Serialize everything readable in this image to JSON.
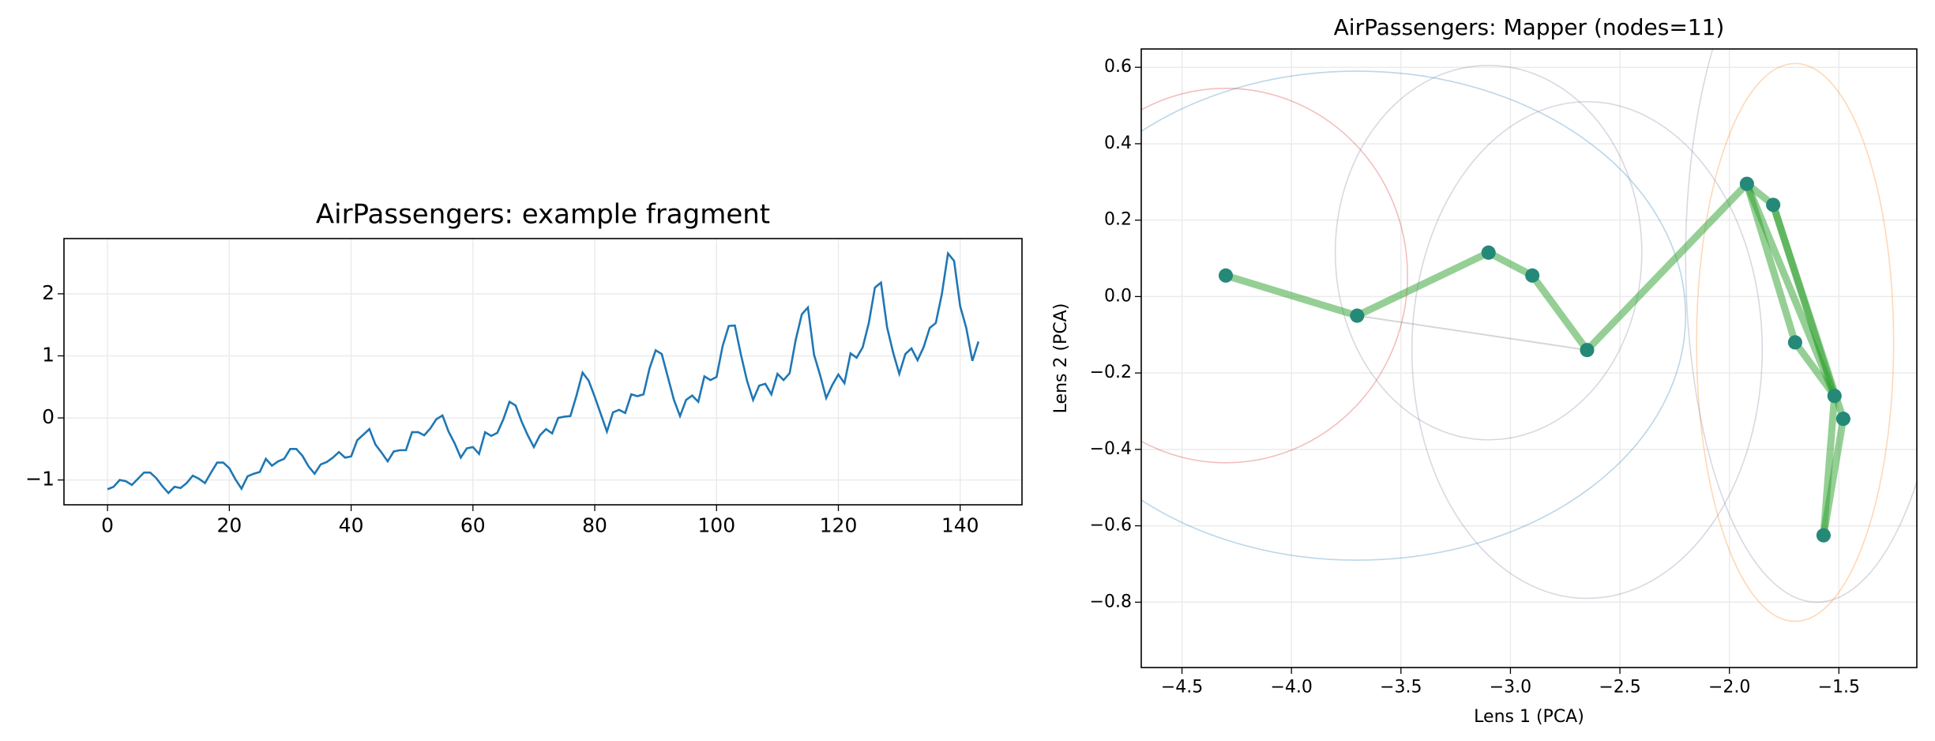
{
  "chart_data": [
    {
      "type": "line",
      "title": "AirPassengers: example fragment",
      "x": [
        0,
        1,
        2,
        3,
        4,
        5,
        6,
        7,
        8,
        9,
        10,
        11,
        12,
        13,
        14,
        15,
        16,
        17,
        18,
        19,
        20,
        21,
        22,
        23,
        24,
        25,
        26,
        27,
        28,
        29,
        30,
        31,
        32,
        33,
        34,
        35,
        36,
        37,
        38,
        39,
        40,
        41,
        42,
        43,
        44,
        45,
        46,
        47,
        48,
        49,
        50,
        51,
        52,
        53,
        54,
        55,
        56,
        57,
        58,
        59,
        60,
        61,
        62,
        63,
        64,
        65,
        66,
        67,
        68,
        69,
        70,
        71,
        72,
        73,
        74,
        75,
        76,
        77,
        78,
        79,
        80,
        81,
        82,
        83,
        84,
        85,
        86,
        87,
        88,
        89,
        90,
        91,
        92,
        93,
        94,
        95,
        96,
        97,
        98,
        99,
        100,
        101,
        102,
        103,
        104,
        105,
        106,
        107,
        108,
        109,
        110,
        111,
        112,
        113,
        114,
        115,
        116,
        117,
        118,
        119,
        120,
        121,
        122,
        123,
        124,
        125,
        126,
        127,
        128,
        129,
        130,
        131,
        132,
        133,
        134,
        135,
        136,
        137,
        138,
        139,
        140,
        141,
        142,
        143
      ],
      "values": [
        -1.15,
        -1.11,
        -1.0,
        -1.02,
        -1.08,
        -0.98,
        -0.88,
        -0.88,
        -0.97,
        -1.1,
        -1.21,
        -1.11,
        -1.13,
        -1.05,
        -0.93,
        -0.98,
        -1.05,
        -0.88,
        -0.72,
        -0.72,
        -0.81,
        -0.99,
        -1.14,
        -0.94,
        -0.9,
        -0.87,
        -0.66,
        -0.77,
        -0.7,
        -0.66,
        -0.5,
        -0.5,
        -0.61,
        -0.78,
        -0.9,
        -0.75,
        -0.71,
        -0.64,
        -0.55,
        -0.64,
        -0.62,
        -0.36,
        -0.27,
        -0.18,
        -0.43,
        -0.56,
        -0.7,
        -0.54,
        -0.52,
        -0.52,
        -0.23,
        -0.23,
        -0.28,
        -0.17,
        -0.02,
        0.04,
        -0.22,
        -0.41,
        -0.64,
        -0.49,
        -0.47,
        -0.58,
        -0.23,
        -0.29,
        -0.24,
        -0.02,
        0.26,
        0.2,
        -0.06,
        -0.28,
        -0.47,
        -0.28,
        -0.18,
        -0.25,
        0.0,
        0.02,
        0.03,
        0.36,
        0.73,
        0.6,
        0.34,
        0.06,
        -0.22,
        0.09,
        0.13,
        0.08,
        0.38,
        0.35,
        0.38,
        0.8,
        1.09,
        1.03,
        0.66,
        0.29,
        0.03,
        0.29,
        0.36,
        0.26,
        0.67,
        0.61,
        0.66,
        1.16,
        1.48,
        1.49,
        1.02,
        0.6,
        0.29,
        0.52,
        0.55,
        0.38,
        0.71,
        0.61,
        0.72,
        1.26,
        1.67,
        1.78,
        1.02,
        0.69,
        0.32,
        0.53,
        0.7,
        0.56,
        1.04,
        0.97,
        1.14,
        1.53,
        2.1,
        2.18,
        1.46,
        1.05,
        0.71,
        1.03,
        1.12,
        0.93,
        1.14,
        1.45,
        1.53,
        2.0,
        2.65,
        2.53,
        1.8,
        1.45,
        0.92,
        1.23
      ],
      "color": "#1f77b4",
      "xlim": [
        -7.15,
        150.15
      ],
      "ylim": [
        -1.4,
        2.89
      ],
      "xticks": [
        0,
        20,
        40,
        60,
        80,
        100,
        120,
        140
      ],
      "yticks": [
        {
          "value": -1,
          "label": "−1"
        },
        0,
        1,
        2
      ],
      "grid": true
    },
    {
      "type": "mapper",
      "title": "AirPassengers: Mapper (nodes=11)",
      "x_label": "Lens 1 (PCA)",
      "y_label": "Lens 2 (PCA)",
      "x": [
        -4.3,
        -3.7,
        -3.1,
        -2.9,
        -2.65,
        -1.92,
        -1.8,
        -1.7,
        -1.52,
        -1.48,
        -1.57
      ],
      "values": [
        0.055,
        -0.05,
        0.115,
        0.055,
        -0.14,
        0.295,
        0.24,
        -0.12,
        -0.26,
        -0.32,
        -0.625
      ],
      "color": "#1f77b4",
      "edge_color": "#2ca02c",
      "edges": [
        [
          0,
          1
        ],
        [
          1,
          2
        ],
        [
          2,
          3
        ],
        [
          3,
          4
        ],
        [
          4,
          5
        ],
        [
          5,
          6
        ],
        [
          5,
          8
        ],
        [
          5,
          7
        ],
        [
          7,
          8
        ],
        [
          6,
          9
        ],
        [
          6,
          8
        ],
        [
          8,
          10
        ],
        [
          9,
          10
        ]
      ],
      "faint_edges": [
        [
          1,
          4
        ]
      ],
      "covers": [
        {
          "x": -4.3,
          "y": 0.055,
          "rx": 0.83,
          "ry": 0.49,
          "color": "#d62728"
        },
        {
          "x": -3.7,
          "y": -0.05,
          "rx": 1.5,
          "ry": 0.64,
          "color": "#1f77b4"
        },
        {
          "x": -3.1,
          "y": 0.115,
          "rx": 0.7,
          "ry": 0.49,
          "color": "#7f7f9f"
        },
        {
          "x": -2.65,
          "y": -0.14,
          "rx": 0.8,
          "ry": 0.65,
          "color": "#7f7f9f"
        },
        {
          "x": -1.7,
          "y": -0.12,
          "rx": 0.45,
          "ry": 0.73,
          "color": "#ff7f0e"
        },
        {
          "x": -1.6,
          "y": 0.1,
          "rx": 0.6,
          "ry": 0.9,
          "color": "#7f7f9f"
        }
      ],
      "xlim": [
        -4.686,
        -1.144
      ],
      "ylim": [
        -0.971,
        0.648
      ],
      "xticks": [
        {
          "value": -4.5,
          "label": "−4.5"
        },
        {
          "value": -4,
          "label": "−4.0"
        },
        {
          "value": -3.5,
          "label": "−3.5"
        },
        {
          "value": -3,
          "label": "−3.0"
        },
        {
          "value": -2.5,
          "label": "−2.5"
        },
        {
          "value": -2,
          "label": "−2.0"
        },
        {
          "value": -1.5,
          "label": "−1.5"
        }
      ],
      "yticks": [
        {
          "value": -0.8,
          "label": "−0.8"
        },
        {
          "value": -0.6,
          "label": "−0.6"
        },
        {
          "value": -0.4,
          "label": "−0.4"
        },
        {
          "value": -0.2,
          "label": "−0.2"
        },
        {
          "value": 0,
          "label": "0.0"
        },
        0.2,
        0.4,
        0.6
      ],
      "grid": true
    }
  ]
}
